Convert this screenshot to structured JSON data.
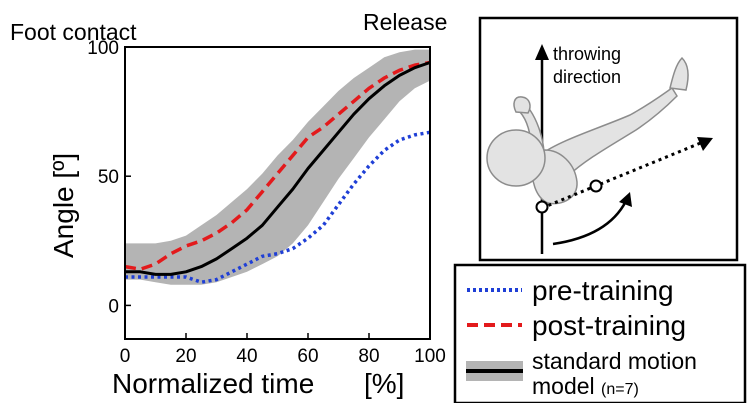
{
  "annotations": {
    "left_top": "Foot contact",
    "right_top": "Release"
  },
  "inset": {
    "arrow_label_line1": "throwing",
    "arrow_label_line2": "direction"
  },
  "legend": {
    "pre": "pre-training",
    "post": "post-training",
    "model_line1": "standard motion",
    "model_line2": "model",
    "model_n": "(n=7)"
  },
  "colors": {
    "pre": "#1f3fd6",
    "post": "#e31a1c",
    "mean": "#000000",
    "band": "#b4b4b4"
  },
  "chart_data": {
    "type": "line",
    "xlabel": "Normalized time",
    "xlabel_unit": "[%]",
    "ylabel": "Angle [º]",
    "xlim": [
      0,
      100
    ],
    "ylim": [
      -13,
      100
    ],
    "xticks": [
      "0",
      "20",
      "40",
      "60",
      "80",
      "100"
    ],
    "yticks": [
      "0",
      "50",
      "100"
    ],
    "xtick_values": [
      0,
      20,
      40,
      60,
      80,
      100
    ],
    "ytick_values": [
      0,
      50,
      100
    ],
    "x": [
      0,
      5,
      10,
      15,
      20,
      25,
      30,
      35,
      40,
      45,
      50,
      55,
      60,
      65,
      70,
      75,
      80,
      85,
      90,
      95,
      100
    ],
    "series": [
      {
        "name": "pre-training",
        "style": "dotted",
        "values": [
          11,
          11,
          11,
          11,
          11,
          9,
          10,
          13,
          16,
          19,
          20,
          22,
          26,
          31,
          39,
          47,
          54,
          60,
          64,
          66,
          67
        ]
      },
      {
        "name": "post-training",
        "style": "dashed",
        "values": [
          15,
          14,
          16,
          20,
          23,
          25,
          28,
          32,
          37,
          44,
          51,
          58,
          65,
          69,
          74,
          79,
          84,
          88,
          91,
          93,
          94
        ]
      },
      {
        "name": "standard motion model",
        "style": "solid",
        "values": [
          13,
          13,
          12,
          12,
          13,
          15,
          18,
          22,
          26,
          31,
          38,
          45,
          53,
          60,
          67,
          74,
          80,
          85,
          89,
          92,
          94
        ]
      }
    ],
    "band": {
      "upper": [
        24,
        24,
        24,
        25,
        27,
        31,
        35,
        40,
        45,
        51,
        58,
        64,
        71,
        77,
        83,
        88,
        92,
        96,
        98,
        99,
        99
      ],
      "lower": [
        10,
        10,
        9,
        8,
        8,
        8,
        9,
        11,
        13,
        16,
        19,
        24,
        31,
        40,
        49,
        57,
        65,
        72,
        79,
        84,
        87
      ]
    }
  }
}
